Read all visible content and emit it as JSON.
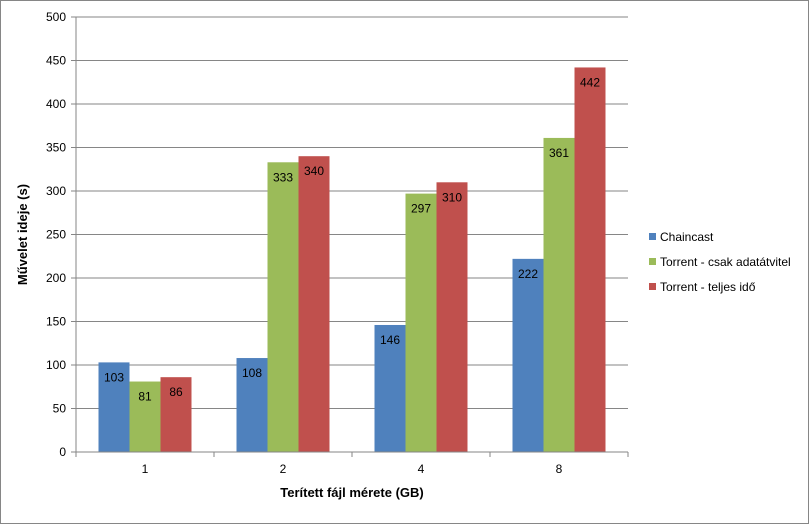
{
  "chart_data": {
    "type": "bar",
    "title": "",
    "xlabel": "Terített fájl mérete (GB)",
    "ylabel": "Művelet ideje (s)",
    "categories": [
      "1",
      "2",
      "4",
      "8"
    ],
    "series": [
      {
        "name": "Chaincast",
        "color": "#4F81BD",
        "values": [
          103,
          108,
          146,
          222
        ]
      },
      {
        "name": "Torrent - csak adatátvitel",
        "color": "#9BBB59",
        "values": [
          81,
          333,
          297,
          361
        ]
      },
      {
        "name": "Torrent - teljes idő",
        "color": "#C0504D",
        "values": [
          86,
          340,
          310,
          442
        ]
      }
    ],
    "ylim": [
      0,
      500
    ],
    "yticks": [
      0,
      50,
      100,
      150,
      200,
      250,
      300,
      350,
      400,
      450,
      500
    ],
    "grid": true,
    "legend_position": "right"
  }
}
